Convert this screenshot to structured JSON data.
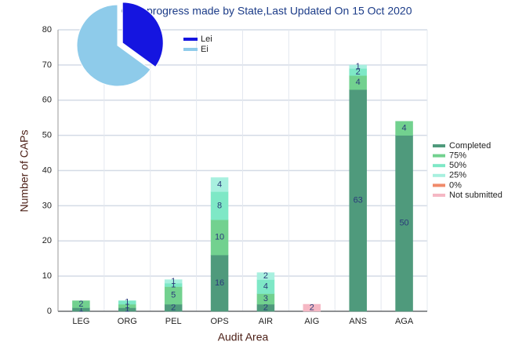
{
  "chart_data": [
    {
      "type": "stacked_bar",
      "title": "CAP progress made by State,Last Updated On 15 Oct 2020",
      "x_label": "Audit Area",
      "y_label": "Number of CAPs",
      "categories": [
        "LEG",
        "ORG",
        "PEL",
        "OPS",
        "AIR",
        "AIG",
        "ANS",
        "AGA"
      ],
      "series": [
        {
          "name": "Completed",
          "color": "#4f9a7c",
          "values": [
            1,
            1,
            2,
            16,
            2,
            0,
            63,
            50
          ]
        },
        {
          "name": "75%",
          "color": "#72d18f",
          "values": [
            2,
            1,
            5,
            10,
            3,
            0,
            4,
            4
          ]
        },
        {
          "name": "50%",
          "color": "#7ee8c6",
          "values": [
            0,
            1,
            1,
            8,
            4,
            0,
            2,
            0
          ]
        },
        {
          "name": "25%",
          "color": "#a8f0df",
          "values": [
            0,
            0,
            1,
            4,
            2,
            0,
            1,
            0
          ]
        },
        {
          "name": "0%",
          "color": "#f08a6a",
          "values": [
            0,
            0,
            0,
            0,
            0,
            0,
            0,
            0
          ]
        },
        {
          "name": "Not submitted",
          "color": "#f5b8c4",
          "values": [
            0,
            0,
            0,
            0,
            0,
            2,
            0,
            0
          ]
        }
      ],
      "ylim": [
        0,
        80
      ],
      "yticks": [
        0,
        10,
        20,
        30,
        40,
        50,
        60,
        70,
        80
      ],
      "grid": true,
      "legend": "right"
    },
    {
      "type": "pie",
      "categories": [
        "Lei",
        "Ei"
      ],
      "values": [
        35,
        65
      ],
      "colors": [
        "#1515e0",
        "#8ecbea"
      ],
      "legend": "right"
    }
  ]
}
